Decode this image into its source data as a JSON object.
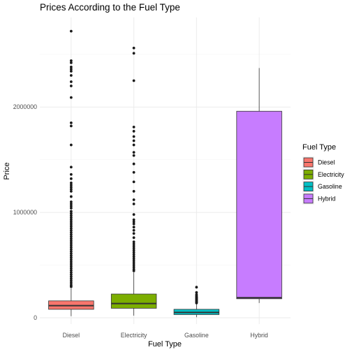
{
  "chart_data": {
    "type": "box",
    "title": "Prices According to the Fuel Type",
    "xlabel": "Fuel Type",
    "ylabel": "Price",
    "ylim": [
      -60000,
      2850000
    ],
    "yticks": [
      0,
      1000000,
      2000000
    ],
    "ytick_labels": [
      "0",
      "1000000",
      "2000000"
    ],
    "grid": true,
    "legend": {
      "title": "Fuel Type",
      "position": "right"
    },
    "categories": [
      "Diesel",
      "Electricity",
      "Gasoline",
      "Hybrid"
    ],
    "colors": {
      "Diesel": "#F8766D",
      "Electricity": "#7CAE00",
      "Gasoline": "#00BFC4",
      "Hybrid": "#C77CFF"
    },
    "boxes": [
      {
        "name": "Diesel",
        "whisker_low": 15000,
        "q1": 80000,
        "median": 115000,
        "q3": 160000,
        "whisker_high": 280000,
        "outliers": [
          2720000,
          2440000,
          2420000,
          2380000,
          2360000,
          2340000,
          2300000,
          2240000,
          2200000,
          2090000,
          1850000,
          1820000,
          1640000,
          1430000,
          1360000,
          1320000,
          1280000,
          1260000,
          1240000,
          1220000,
          1200000,
          1150000,
          1100000,
          1080000,
          1060000,
          1040000,
          1010000,
          990000,
          970000,
          950000,
          930000,
          910000,
          890000,
          870000,
          850000,
          830000,
          810000,
          790000,
          770000,
          750000,
          730000,
          710000,
          690000,
          670000,
          650000,
          630000,
          610000,
          590000,
          570000,
          550000,
          530000,
          510000,
          490000,
          470000,
          450000,
          430000,
          410000,
          390000,
          370000,
          350000,
          330000,
          310000,
          295000
        ]
      },
      {
        "name": "Electricity",
        "whisker_low": 20000,
        "q1": 90000,
        "median": 135000,
        "q3": 225000,
        "whisker_high": 430000,
        "outliers": [
          2560000,
          2510000,
          2250000,
          1810000,
          1770000,
          1720000,
          1680000,
          1640000,
          1570000,
          1540000,
          1460000,
          1380000,
          1290000,
          1200000,
          1120000,
          1080000,
          980000,
          930000,
          910000,
          890000,
          860000,
          830000,
          800000,
          760000,
          720000,
          700000,
          680000,
          660000,
          640000,
          620000,
          600000,
          580000,
          560000,
          540000,
          520000,
          500000,
          480000,
          460000,
          445000
        ]
      },
      {
        "name": "Gasoline",
        "whisker_low": 5000,
        "q1": 30000,
        "median": 50000,
        "q3": 80000,
        "whisker_high": 130000,
        "outliers": [
          290000,
          240000,
          220000,
          210000,
          200000,
          195000,
          190000,
          185000,
          180000,
          175000,
          170000,
          165000,
          160000,
          155000,
          150000,
          145000,
          140000
        ]
      },
      {
        "name": "Hybrid",
        "whisker_low": 140000,
        "q1": 180000,
        "median": 190000,
        "q3": 1960000,
        "whisker_high": 2370000,
        "outliers": []
      }
    ]
  }
}
